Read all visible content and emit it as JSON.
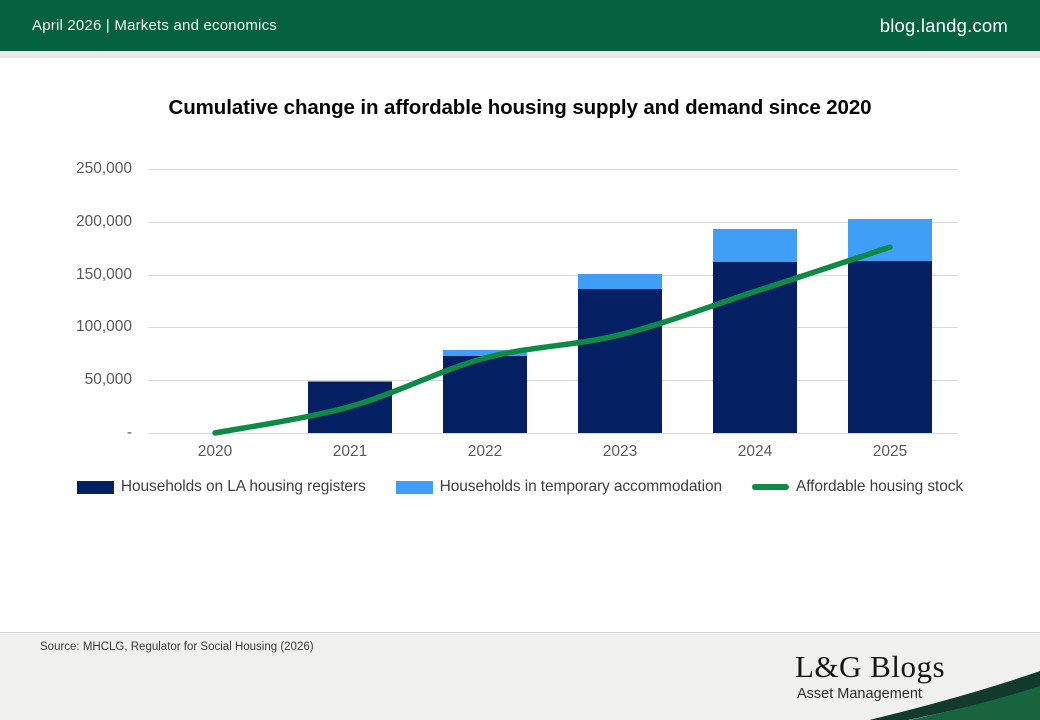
{
  "header": {
    "left_text": "April 2026 | Markets and economics",
    "right_text": "blog.landg.com",
    "bg_color": "#046240"
  },
  "chart_data": {
    "type": "bar",
    "subtype": "stacked bars with overlaid line",
    "title": "Cumulative change in affordable housing supply and demand since 2020",
    "categories": [
      "2020",
      "2021",
      "2022",
      "2023",
      "2024",
      "2025"
    ],
    "series": [
      {
        "name": "Households on LA housing registers",
        "type": "bar",
        "color": "#051f63",
        "values": [
          0,
          48000,
          73000,
          136000,
          162000,
          162500
        ]
      },
      {
        "name": "Households in temporary accommodation",
        "type": "bar",
        "color": "#3f9ef5",
        "values": [
          0,
          1500,
          5500,
          14500,
          31500,
          40500
        ]
      },
      {
        "name": "Affordable housing stock",
        "type": "line",
        "color": "#0e8a47",
        "values": [
          0,
          25000,
          71000,
          93000,
          134000,
          176000
        ]
      }
    ],
    "stacked": true,
    "xlabel": "",
    "ylabel": "",
    "ylim": [
      0,
      250000
    ],
    "y_tick_interval": 50000,
    "y_tick_labels": [
      "-",
      "50,000",
      "100,000",
      "150,000",
      "200,000",
      "250,000"
    ],
    "grid": "horizontal only",
    "gridline_color": "#d9d9d9",
    "axis_text_color": "#595959",
    "legend_position": "bottom"
  },
  "footer": {
    "source": "Source: MHCLG, Regulator for Social Housing (2026)",
    "logo_title": "L&G Blogs",
    "logo_subtitle": "Asset Management",
    "swoosh_dark": "#123a2c",
    "swoosh_mid": "#17643f"
  }
}
